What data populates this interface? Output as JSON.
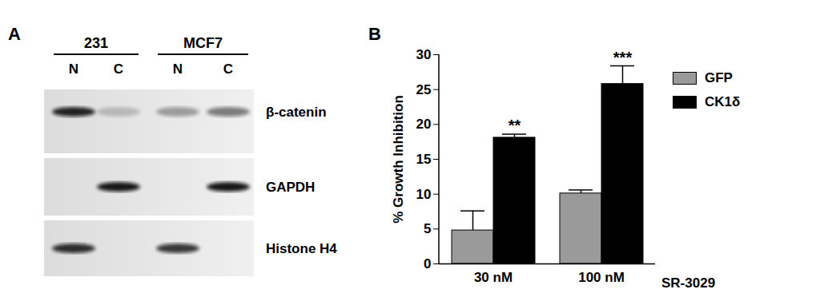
{
  "chart_data": {
    "panel": "B",
    "type": "bar",
    "categories": [
      "30 nM",
      "100 nM"
    ],
    "xlabel": "SR-3029",
    "ylabel": "% Growth Inhibition",
    "ylim": [
      0,
      30
    ],
    "yticks": [
      0,
      5,
      10,
      15,
      20,
      25,
      30
    ],
    "series": [
      {
        "name": "GFP",
        "color": "#9a9a9a",
        "values": [
          4.8,
          10.1
        ],
        "errors": [
          2.8,
          0.5
        ]
      },
      {
        "name": "CK1δ",
        "color": "#000000",
        "values": [
          18.1,
          25.8
        ],
        "errors": [
          0.5,
          2.6
        ]
      }
    ],
    "annotations": [
      {
        "category": "30 nM",
        "series": "CK1δ",
        "text": "**"
      },
      {
        "category": "100 nM",
        "series": "CK1δ",
        "text": "***"
      }
    ],
    "legend": "right"
  },
  "blot": {
    "panel": "A",
    "groups": [
      {
        "label": "231",
        "lanes": [
          "N",
          "C"
        ]
      },
      {
        "label": "MCF7",
        "lanes": [
          "N",
          "C"
        ]
      }
    ],
    "rows": [
      {
        "label": "β-catenin",
        "bands": [
          0.9,
          0.2,
          0.35,
          0.5
        ]
      },
      {
        "label": "GAPDH",
        "bands": [
          0,
          0.95,
          0,
          0.95
        ]
      },
      {
        "label": "Histone H4",
        "bands": [
          0.85,
          0,
          0.8,
          0
        ]
      }
    ]
  }
}
